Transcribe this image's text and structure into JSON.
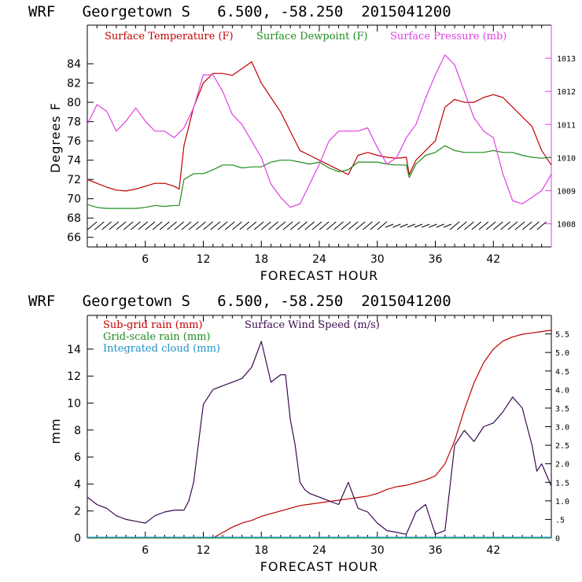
{
  "chart_data": [
    {
      "type": "line",
      "title": "WRF   Georgetown S   6.500, -58.250  2015041200",
      "xlabel": "FORECAST HOUR",
      "ylabel": "Degrees F",
      "xlim": [
        0,
        48
      ],
      "ylim": [
        65,
        88
      ],
      "y2lim": [
        1007.3,
        1014
      ],
      "x_ticks": [
        "6",
        "12",
        "18",
        "24",
        "30",
        "36",
        "42"
      ],
      "y_ticks": [
        "66",
        "68",
        "70",
        "72",
        "74",
        "76",
        "78",
        "80",
        "82",
        "84"
      ],
      "y2_ticks": [
        "1008",
        "1009",
        "1010",
        "1011",
        "1012",
        "1013"
      ],
      "legend": [
        {
          "name": "Surface Temperature (F)",
          "color": "#c00000"
        },
        {
          "name": "Surface Dewpoint (F)",
          "color": "#1e8c1e"
        },
        {
          "name": "Surface Pressure (mb)",
          "color": "#e040e0"
        }
      ],
      "series": [
        {
          "name": "Surface Temperature (F)",
          "color": "#c00000",
          "axis": "left",
          "x": [
            0,
            1,
            2,
            3,
            4,
            5,
            6,
            7,
            8,
            9,
            9.5,
            10,
            11,
            12,
            13,
            14,
            15,
            16,
            17,
            18,
            19,
            20,
            21,
            22,
            23,
            24,
            25,
            26,
            27,
            28,
            29,
            30,
            31,
            32,
            33,
            33.3,
            34,
            35,
            36,
            37,
            38,
            39,
            40,
            41,
            42,
            43,
            44,
            45,
            46,
            47,
            48
          ],
          "y": [
            72,
            71.6,
            71.2,
            70.9,
            70.8,
            71,
            71.3,
            71.6,
            71.6,
            71.3,
            71,
            75.5,
            79.5,
            82,
            83,
            83,
            82.8,
            83.5,
            84.2,
            82,
            80.5,
            79,
            77,
            75,
            74.5,
            74,
            73.5,
            73,
            72.5,
            74.5,
            74.8,
            74.5,
            74.3,
            74.2,
            74.3,
            72.5,
            74,
            75,
            76,
            79.5,
            80.3,
            80,
            80,
            80.5,
            80.8,
            80.5,
            79.5,
            78.5,
            77.5,
            75,
            73.5
          ]
        },
        {
          "name": "Surface Dewpoint (F)",
          "color": "#1e8c1e",
          "axis": "left",
          "x": [
            0,
            1,
            2,
            3,
            4,
            5,
            6,
            7,
            8,
            9,
            9.5,
            10,
            11,
            12,
            13,
            14,
            15,
            16,
            17,
            18,
            19,
            20,
            21,
            22,
            23,
            24,
            25,
            26,
            27,
            28,
            29,
            30,
            31,
            32,
            33,
            33.3,
            34,
            35,
            36,
            37,
            38,
            39,
            40,
            41,
            42,
            43,
            44,
            45,
            46,
            47,
            48
          ],
          "y": [
            69.4,
            69.1,
            69,
            69,
            69,
            69,
            69.1,
            69.3,
            69.2,
            69.3,
            69.3,
            72,
            72.6,
            72.6,
            73,
            73.5,
            73.5,
            73.2,
            73.3,
            73.3,
            73.8,
            74,
            74,
            73.8,
            73.6,
            73.8,
            73.2,
            72.8,
            73,
            73.8,
            73.8,
            73.8,
            73.6,
            73.5,
            73.5,
            72.2,
            73.6,
            74.5,
            74.8,
            75.5,
            75,
            74.8,
            74.8,
            74.8,
            75,
            74.8,
            74.8,
            74.5,
            74.3,
            74.2,
            74.3
          ]
        },
        {
          "name": "Surface Pressure (mb)",
          "color": "#e040e0",
          "axis": "right",
          "x": [
            0,
            1,
            2,
            3,
            4,
            5,
            6,
            7,
            8,
            9,
            10,
            11,
            12,
            13,
            14,
            15,
            16,
            17,
            18,
            19,
            20,
            21,
            22,
            23,
            24,
            25,
            26,
            27,
            28,
            29,
            30,
            31,
            32,
            33,
            34,
            35,
            36,
            37,
            38,
            39,
            40,
            41,
            42,
            43,
            44,
            45,
            46,
            47,
            48
          ],
          "y": [
            1011,
            1011.6,
            1011.4,
            1010.8,
            1011.1,
            1011.5,
            1011.1,
            1010.8,
            1010.8,
            1010.6,
            1010.9,
            1011.5,
            1012.5,
            1012.5,
            1012.0,
            1011.3,
            1011.0,
            1010.5,
            1010.0,
            1009.2,
            1008.8,
            1008.5,
            1008.6,
            1009.2,
            1009.8,
            1010.5,
            1010.8,
            1010.8,
            1010.8,
            1010.9,
            1010.3,
            1009.8,
            1010,
            1010.6,
            1011,
            1011.8,
            1012.5,
            1013.1,
            1012.8,
            1012.0,
            1011.2,
            1010.8,
            1010.6,
            1009.5,
            1008.7,
            1008.6,
            1008.8,
            1009.0,
            1009.5
          ]
        }
      ],
      "wind_barbs": {
        "x_start": 0.5,
        "x_step": 0.75,
        "count": 63,
        "y_level": 67.2
      }
    },
    {
      "type": "line",
      "title": "WRF   Georgetown S   6.500, -58.250  2015041200",
      "xlabel": "FORECAST HOUR",
      "ylabel": "mm",
      "xlim": [
        0,
        48
      ],
      "ylim": [
        0,
        16.5
      ],
      "y2lim": [
        0,
        6.0
      ],
      "x_ticks": [
        "6",
        "12",
        "18",
        "24",
        "30",
        "36",
        "42"
      ],
      "y_ticks": [
        "0",
        "2",
        "4",
        "6",
        "8",
        "10",
        "12",
        "14"
      ],
      "y2_ticks": [
        "0",
        ".5",
        "1.0",
        "1.5",
        "2.0",
        "2.5",
        "3.0",
        "3.5",
        "4.0",
        "4.5",
        "5.0",
        "5.5"
      ],
      "legend": [
        {
          "name": "Sub-grid rain (mm)",
          "color": "#c00000"
        },
        {
          "name": "Grid-scale rain (mm)",
          "color": "#1e8c1e"
        },
        {
          "name": "Integrated cloud (mm)",
          "color": "#1e90c8"
        },
        {
          "name": "Surface Wind Speed (m/s)",
          "color": "#3c0a50"
        }
      ],
      "series": [
        {
          "name": "Sub-grid rain (mm)",
          "color": "#c00000",
          "axis": "left",
          "x": [
            0,
            13,
            14,
            15,
            16,
            17,
            18,
            19,
            20,
            21,
            22,
            23,
            24,
            25,
            26,
            27,
            28,
            29,
            30,
            31,
            32,
            33,
            34,
            35,
            36,
            37,
            38,
            39,
            40,
            41,
            42,
            43,
            44,
            45,
            46,
            47,
            48
          ],
          "y": [
            0,
            0,
            0.4,
            0.8,
            1.1,
            1.3,
            1.6,
            1.8,
            2.0,
            2.2,
            2.4,
            2.5,
            2.6,
            2.7,
            2.8,
            2.9,
            3.0,
            3.1,
            3.3,
            3.6,
            3.8,
            3.9,
            4.1,
            4.3,
            4.6,
            5.5,
            7.2,
            9.5,
            11.5,
            13.0,
            14.0,
            14.6,
            14.9,
            15.1,
            15.2,
            15.3,
            15.4
          ]
        },
        {
          "name": "Grid-scale rain (mm)",
          "color": "#1e8c1e",
          "axis": "left",
          "x": [
            0,
            48
          ],
          "y": [
            0,
            0
          ]
        },
        {
          "name": "Integrated cloud (mm)",
          "color": "#1e90c8",
          "axis": "left",
          "x": [
            0,
            48
          ],
          "y": [
            0.05,
            0.05
          ]
        },
        {
          "name": "Surface Wind Speed (m/s)",
          "color": "#3c0a50",
          "axis": "right",
          "x": [
            0,
            1,
            2,
            3,
            4,
            5,
            6,
            7,
            8,
            9,
            10,
            10.5,
            11,
            12,
            13,
            14,
            15,
            16,
            17,
            18,
            19,
            20,
            20.5,
            21,
            21.5,
            22,
            22.5,
            23,
            24,
            25,
            26,
            27,
            28,
            29,
            30,
            31,
            32,
            33,
            34,
            35,
            36,
            37,
            38,
            39,
            40,
            41,
            42,
            43,
            44,
            45,
            46,
            46.5,
            47,
            48
          ],
          "y": [
            1.1,
            0.9,
            0.8,
            0.6,
            0.5,
            0.45,
            0.4,
            0.6,
            0.7,
            0.75,
            0.75,
            1.0,
            1.5,
            3.6,
            4.0,
            4.1,
            4.2,
            4.3,
            4.6,
            5.3,
            4.2,
            4.4,
            4.4,
            3.2,
            2.5,
            1.5,
            1.3,
            1.2,
            1.1,
            1.0,
            0.9,
            1.5,
            0.8,
            0.7,
            0.4,
            0.2,
            0.15,
            0.1,
            0.7,
            0.9,
            0.1,
            0.2,
            2.5,
            2.9,
            2.6,
            3.0,
            3.1,
            3.4,
            3.8,
            3.5,
            2.5,
            1.8,
            2.0,
            1.4
          ]
        }
      ]
    }
  ]
}
